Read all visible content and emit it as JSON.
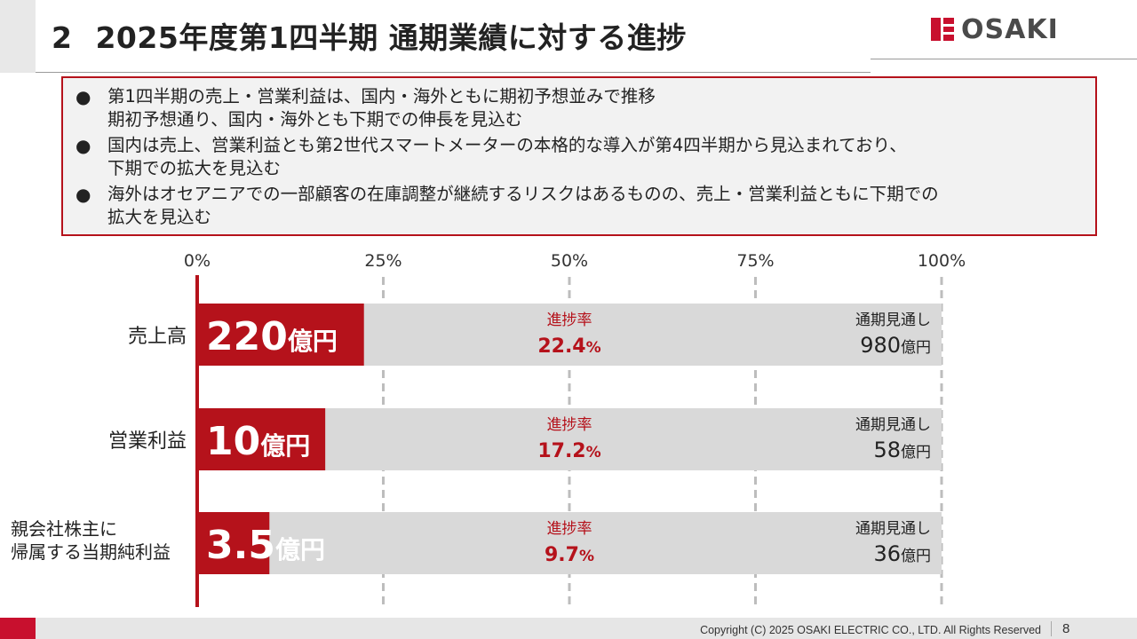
{
  "header": {
    "section_number": "2",
    "title": "2025年度第1四半期 通期業績に対する進捗",
    "logo_text": "OSAKI"
  },
  "bullets": [
    "第1四半期の売上・営業利益は、国内・海外ともに期初予想並みで推移\n期初予想通り、国内・海外とも下期での伸長を見込む",
    "国内は売上、営業利益とも第2世代スマートメーターの本格的な導入が第4四半期から見込まれており、\n下期での拡大を見込む",
    "海外はオセアニアでの一部顧客の在庫調整が継続するリスクはあるものの、売上・営業利益ともに下期での\n拡大を見込む"
  ],
  "chart_data": {
    "type": "bar",
    "orientation": "horizontal",
    "x_ticks": [
      "0%",
      "25%",
      "50%",
      "75%",
      "100%"
    ],
    "xlim": [
      0,
      100
    ],
    "grid": "dashed vertical at 25%, 50%, 75%, 100%",
    "categories": [
      "売上高",
      "営業利益",
      "親会社株主に\n帰属する当期純利益"
    ],
    "progress_rate": [
      22.4,
      17.2,
      9.7
    ],
    "actual_values": [
      "220",
      "10",
      "3.5"
    ],
    "actual_unit": "億円",
    "rate_label": "進捗率",
    "rate_unit": "%",
    "forecast_label": "通期見通し",
    "forecast_values": [
      "980",
      "58",
      "36"
    ],
    "forecast_unit": "億円",
    "colors": {
      "progress": "#b5121b",
      "remaining": "#d9d9d9",
      "rate_text": "#b5121b"
    }
  },
  "footer": {
    "copyright": "Copyright (C) 2025 OSAKI ELECTRIC CO., LTD. All Rights Reserved",
    "page_number": "8"
  }
}
